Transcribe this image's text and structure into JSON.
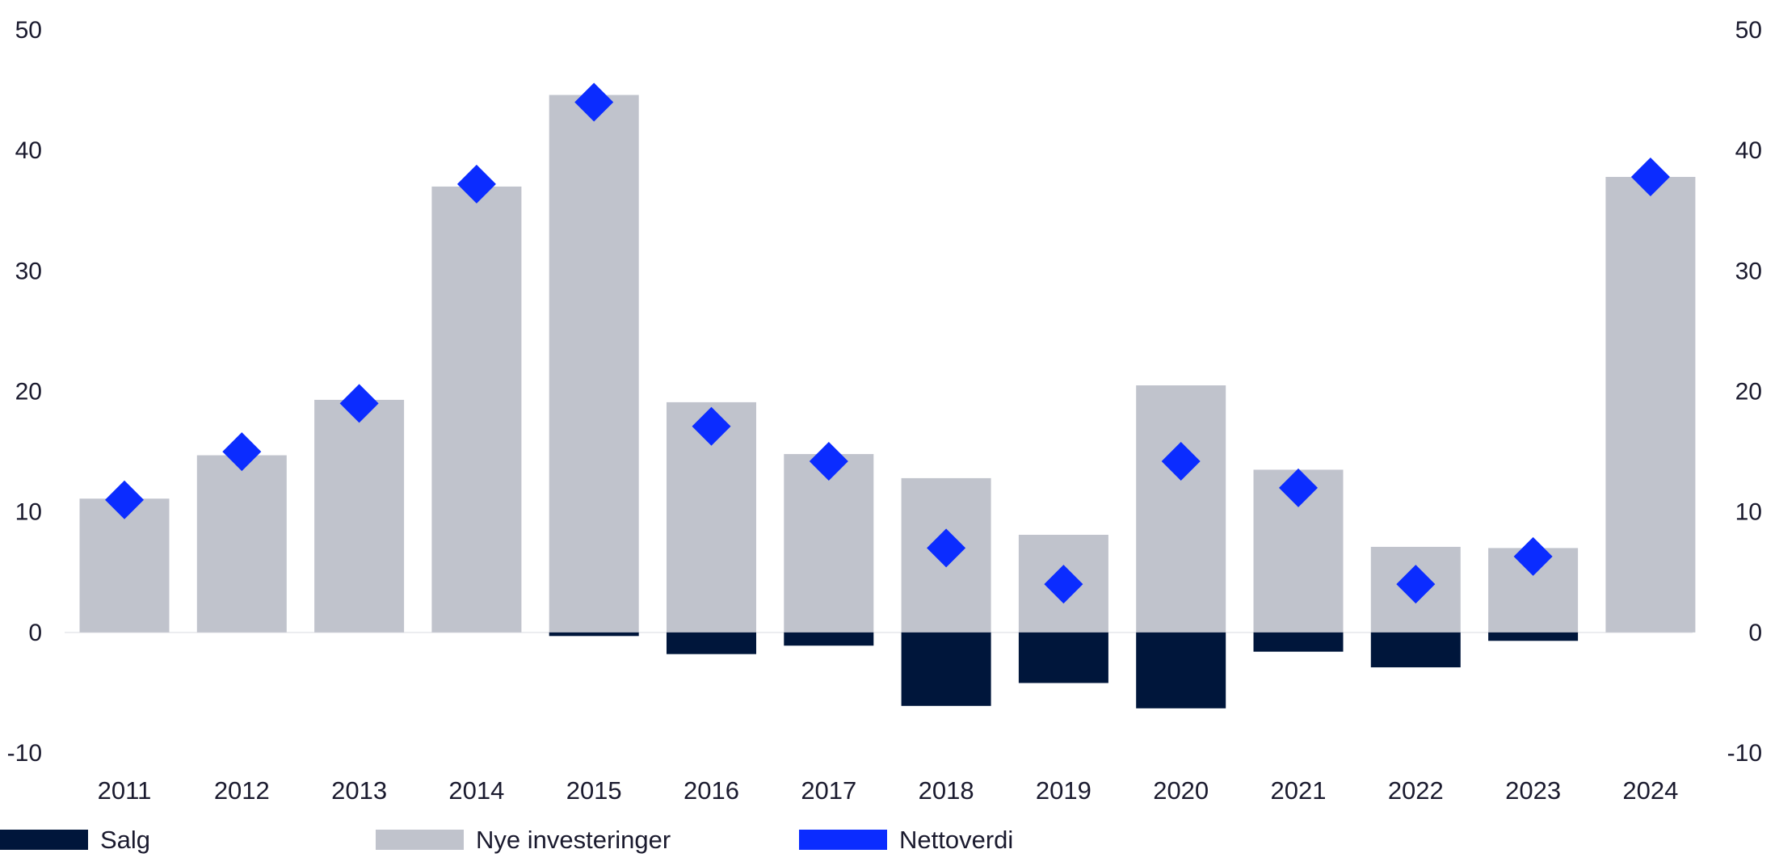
{
  "chart_data": {
    "type": "bar",
    "title": "",
    "xlabel": "",
    "ylabel": "",
    "ylim": [
      -10,
      50
    ],
    "yticks": [
      50,
      40,
      30,
      20,
      10,
      0,
      -10
    ],
    "grid": false,
    "legend_position": "bottom-left",
    "categories": [
      "2011",
      "2012",
      "2013",
      "2014",
      "2015",
      "2016",
      "2017",
      "2018",
      "2019",
      "2020",
      "2021",
      "2022",
      "2023",
      "2024"
    ],
    "series": [
      {
        "name": "Salg",
        "type": "bar",
        "color": "#00163b",
        "values": [
          0,
          0,
          0,
          0,
          -0.3,
          -1.8,
          -1.1,
          -6.1,
          -4.2,
          -6.3,
          -1.6,
          -2.9,
          -0.7,
          0
        ]
      },
      {
        "name": "Nye investeringer",
        "type": "bar",
        "color": "#c0c3cc",
        "values": [
          11.1,
          14.7,
          19.3,
          37.0,
          44.6,
          19.1,
          14.8,
          12.8,
          8.1,
          20.5,
          13.5,
          7.1,
          7.0,
          37.8
        ]
      },
      {
        "name": "Nettoverdi",
        "type": "marker",
        "color": "#0b2cff",
        "values": [
          11.0,
          15.0,
          19.0,
          37.2,
          44.0,
          17.1,
          14.2,
          7.0,
          4.0,
          14.2,
          12.0,
          4.0,
          6.3,
          37.8
        ]
      }
    ]
  }
}
